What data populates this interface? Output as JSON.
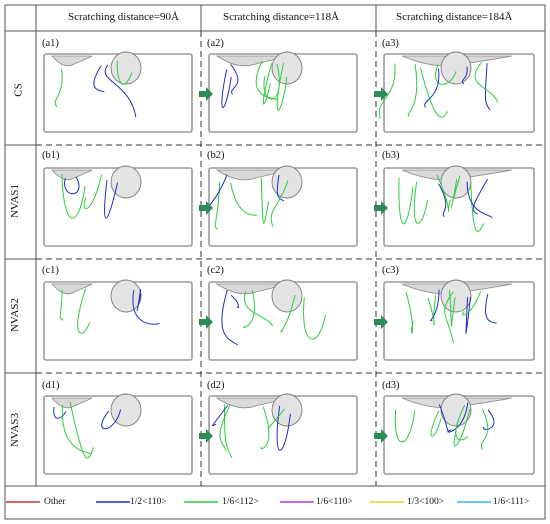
{
  "figure": {
    "columns": [
      {
        "header": "Scratching distance=90Å"
      },
      {
        "header": "Scratching distance=118Å"
      },
      {
        "header": "Scratching distance=184Å"
      }
    ],
    "rows": [
      {
        "label": "CS",
        "panels": [
          "(a1)",
          "(a2)",
          "(a3)"
        ]
      },
      {
        "label": "NVAS1",
        "panels": [
          "(b1)",
          "(b2)",
          "(b3)"
        ]
      },
      {
        "label": "NVAS2",
        "panels": [
          "(c1)",
          "(c2)",
          "(c3)"
        ]
      },
      {
        "label": "NVAS3",
        "panels": [
          "(d1)",
          "(d2)",
          "(d3)"
        ]
      }
    ],
    "legend": [
      {
        "label": "Other",
        "color": "#c0392b"
      },
      {
        "label": "1/2<110>",
        "color": "#1f2fbf"
      },
      {
        "label": "1/6<112>",
        "color": "#2ecc40"
      },
      {
        "label": "1/6<110>",
        "color": "#b03adf"
      },
      {
        "label": "1/3<100>",
        "color": "#e6d42a"
      },
      {
        "label": "1/6<111>",
        "color": "#33b5e6"
      }
    ],
    "colors": {
      "border": "#555555",
      "arrow": "#2e8b57",
      "cell_outline": "#9a9a9a",
      "void": "#d9d9d9"
    }
  }
}
